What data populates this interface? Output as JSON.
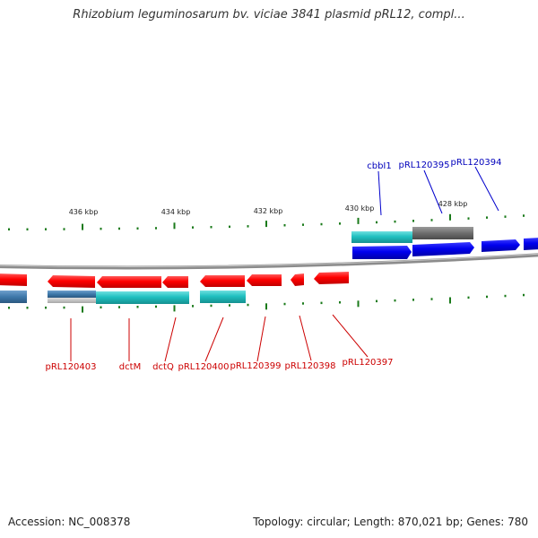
{
  "title": "Rhizobium leguminosarum bv. viciae 3841 plasmid pRL12, compl...",
  "colors": {
    "forward_gene": "#0000ee",
    "reverse_gene": "#ff0000",
    "forward_label": "#0000bb",
    "reverse_label": "#cc0000",
    "tick": "#1a7a1a",
    "backbone": "#888888",
    "cds_cyan": "#25c2c2",
    "cds_gray": "#7a7a7a",
    "cds_steel": "#4682b4"
  },
  "scale_labels": [
    "436 kbp",
    "434 kbp",
    "432 kbp",
    "430 kbp",
    "428 kbp"
  ],
  "forward_labels": [
    "cbbI1",
    "pRL120395",
    "pRL120394"
  ],
  "reverse_labels": [
    "pRL120403",
    "dctM",
    "dctQ",
    "pRL120400",
    "pRL120399",
    "pRL120398",
    "pRL120397"
  ],
  "footer": {
    "accession": "Accession: NC_008378",
    "summary": "Topology: circular; Length: 870,021 bp; Genes: 780"
  }
}
